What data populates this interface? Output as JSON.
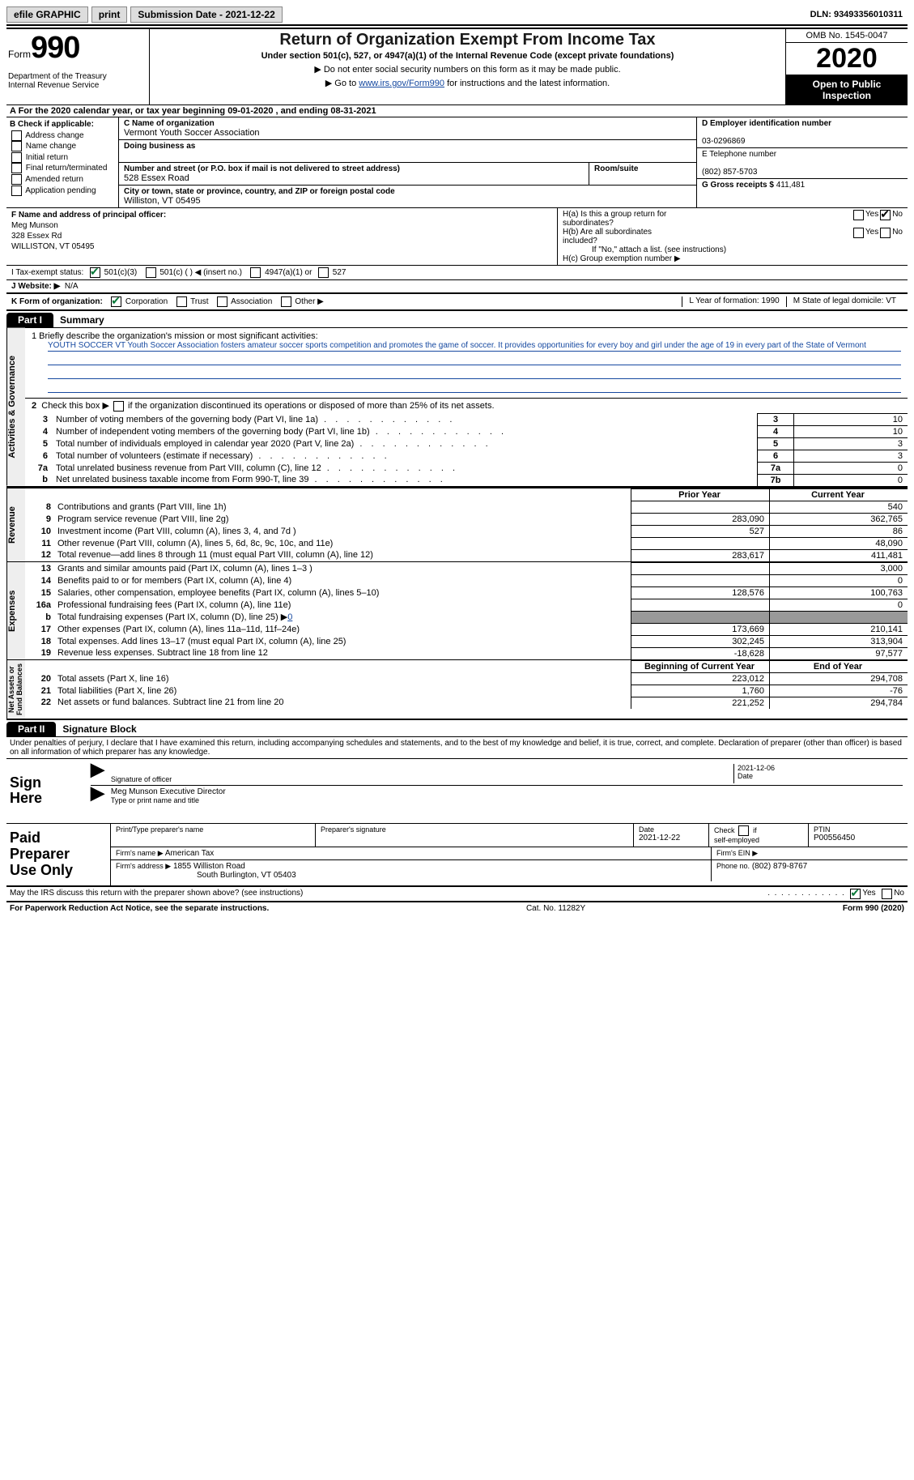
{
  "topbar": {
    "efile_label": "efile GRAPHIC",
    "print_label": "print",
    "submission_label": "Submission Date - 2021-12-22",
    "dln_label": "DLN: 93493356010311"
  },
  "header": {
    "form_word": "Form",
    "form_number": "990",
    "dept": "Department of the Treasury\nInternal Revenue Service",
    "title": "Return of Organization Exempt From Income Tax",
    "subtitle": "Under section 501(c), 527, or 4947(a)(1) of the Internal Revenue Code (except private foundations)",
    "instr1": "▶ Do not enter social security numbers on this form as it may be made public.",
    "instr2_prefix": "▶ Go to ",
    "instr2_link": "www.irs.gov/Form990",
    "instr2_suffix": " for instructions and the latest information.",
    "omb": "OMB No. 1545-0047",
    "year": "2020",
    "open_pub": "Open to Public\nInspection"
  },
  "line_a": "A For the 2020 calendar year, or tax year beginning 09-01-2020    , and ending 08-31-2021",
  "section_b": {
    "label": "B Check if applicable:",
    "items": [
      "Address change",
      "Name change",
      "Initial return",
      "Final return/terminated",
      "Amended return",
      "Application pending"
    ]
  },
  "section_c": {
    "name_label": "C Name of organization",
    "name": "Vermont Youth Soccer Association",
    "dba_label": "Doing business as",
    "dba": "",
    "street_label": "Number and street (or P.O. box if mail is not delivered to street address)",
    "room_label": "Room/suite",
    "street": "528 Essex Road",
    "city_label": "City or town, state or province, country, and ZIP or foreign postal code",
    "city": "Williston, VT  05495"
  },
  "section_d": {
    "ein_label": "D Employer identification number",
    "ein": "03-0296869"
  },
  "section_e": {
    "phone_label": "E Telephone number",
    "phone": "(802) 857-5703"
  },
  "section_g": {
    "gross_label": "G Gross receipts $",
    "gross": "411,481"
  },
  "section_f": {
    "label": "F Name and address of principal officer:",
    "name": "Meg Munson",
    "street": "328 Essex Rd",
    "city": "WILLISTON, VT  05495"
  },
  "section_h": {
    "ha_label": "H(a)  Is this a group return for\n         subordinates?",
    "hb_label": "H(b)  Are all subordinates\n         included?",
    "hb_note": "If \"No,\" attach a list. (see instructions)",
    "hc_label": "H(c)  Group exemption number ▶",
    "yes": "Yes",
    "no": "No"
  },
  "line_i": {
    "label": "I    Tax-exempt status:",
    "opts": [
      "501(c)(3)",
      "501(c) (   ) ◀ (insert no.)",
      "4947(a)(1) or",
      "527"
    ]
  },
  "line_j": {
    "label": "J    Website: ▶",
    "value": "N/A"
  },
  "line_k": {
    "label": "K Form of organization:",
    "opts": [
      "Corporation",
      "Trust",
      "Association",
      "Other ▶"
    ],
    "l_label": "L Year of formation: 1990",
    "m_label": "M State of legal domicile: VT"
  },
  "part1": {
    "tab": "Part I",
    "title": "Summary",
    "sidebar1": "Activities & Governance",
    "sidebar2": "Revenue",
    "sidebar3": "Expenses",
    "sidebar4": "Net Assets or\nFund Balances",
    "q1_label": "1   Briefly describe the organization's mission or most significant activities:",
    "q1_text": "YOUTH SOCCER VT Youth Soccer Association fosters amateur soccer sports competition and promotes the game of soccer. It provides opportunities for every boy and girl under the age of 19 in every part of the State of Vermont",
    "q2_label": "Check this box ▶",
    "q2_suffix": " if the organization discontinued its operations or disposed of more than 25% of its net assets.",
    "rows_gov": [
      {
        "n": "3",
        "desc": "Number of voting members of the governing body (Part VI, line 1a)",
        "box": "3",
        "val": "10"
      },
      {
        "n": "4",
        "desc": "Number of independent voting members of the governing body (Part VI, line 1b)",
        "box": "4",
        "val": "10"
      },
      {
        "n": "5",
        "desc": "Total number of individuals employed in calendar year 2020 (Part V, line 2a)",
        "box": "5",
        "val": "3"
      },
      {
        "n": "6",
        "desc": "Total number of volunteers (estimate if necessary)",
        "box": "6",
        "val": "3"
      },
      {
        "n": "7a",
        "desc": "Total unrelated business revenue from Part VIII, column (C), line 12",
        "box": "7a",
        "val": "0"
      },
      {
        "n": "b",
        "desc": "Net unrelated business taxable income from Form 990-T, line 39",
        "box": "7b",
        "val": "0"
      }
    ],
    "col_prior": "Prior Year",
    "col_current": "Current Year",
    "col_boy": "Beginning of Current Year",
    "col_eoy": "End of Year",
    "rows_rev": [
      {
        "n": "8",
        "desc": "Contributions and grants (Part VIII, line 1h)",
        "c1": "",
        "c2": "540"
      },
      {
        "n": "9",
        "desc": "Program service revenue (Part VIII, line 2g)",
        "c1": "283,090",
        "c2": "362,765"
      },
      {
        "n": "10",
        "desc": "Investment income (Part VIII, column (A), lines 3, 4, and 7d )",
        "c1": "527",
        "c2": "86"
      },
      {
        "n": "11",
        "desc": "Other revenue (Part VIII, column (A), lines 5, 6d, 8c, 9c, 10c, and 11e)",
        "c1": "",
        "c2": "48,090"
      },
      {
        "n": "12",
        "desc": "Total revenue—add lines 8 through 11 (must equal Part VIII, column (A), line 12)",
        "c1": "283,617",
        "c2": "411,481"
      }
    ],
    "rows_exp": [
      {
        "n": "13",
        "desc": "Grants and similar amounts paid (Part IX, column (A), lines 1–3 )",
        "c1": "",
        "c2": "3,000"
      },
      {
        "n": "14",
        "desc": "Benefits paid to or for members (Part IX, column (A), line 4)",
        "c1": "",
        "c2": "0"
      },
      {
        "n": "15",
        "desc": "Salaries, other compensation, employee benefits (Part IX, column (A), lines 5–10)",
        "c1": "128,576",
        "c2": "100,763"
      },
      {
        "n": "16a",
        "desc": "Professional fundraising fees (Part IX, column (A), line 11e)",
        "c1": "",
        "c2": "0"
      },
      {
        "n": "b",
        "desc": "Total fundraising expenses (Part IX, column (D), line 25) ▶0",
        "c1": "SHADE",
        "c2": "SHADE"
      },
      {
        "n": "17",
        "desc": "Other expenses (Part IX, column (A), lines 11a–11d, 11f–24e)",
        "c1": "173,669",
        "c2": "210,141"
      },
      {
        "n": "18",
        "desc": "Total expenses. Add lines 13–17 (must equal Part IX, column (A), line 25)",
        "c1": "302,245",
        "c2": "313,904"
      },
      {
        "n": "19",
        "desc": "Revenue less expenses. Subtract line 18 from line 12",
        "c1": "-18,628",
        "c2": "97,577"
      }
    ],
    "rows_net": [
      {
        "n": "20",
        "desc": "Total assets (Part X, line 16)",
        "c1": "223,012",
        "c2": "294,708"
      },
      {
        "n": "21",
        "desc": "Total liabilities (Part X, line 26)",
        "c1": "1,760",
        "c2": "-76"
      },
      {
        "n": "22",
        "desc": "Net assets or fund balances. Subtract line 21 from line 20",
        "c1": "221,252",
        "c2": "294,784"
      }
    ]
  },
  "part2": {
    "tab": "Part II",
    "title": "Signature Block",
    "perjury": "Under penalties of perjury, I declare that I have examined this return, including accompanying schedules and statements, and to the best of my knowledge and belief, it is true, correct, and complete. Declaration of preparer (other than officer) is based on all information of which preparer has any knowledge.",
    "sign_here": "Sign\nHere",
    "sig_officer": "Signature of officer",
    "sig_date_val": "2021-12-06",
    "date": "Date",
    "officer_name": "Meg Munson Executive Director",
    "type_name": "Type or print name and title",
    "paid_label": "Paid\nPreparer\nUse Only",
    "prep_name_label": "Print/Type preparer's name",
    "prep_sig_label": "Preparer's signature",
    "prep_date_label": "Date",
    "prep_date": "2021-12-22",
    "check_if": "Check",
    "self_emp": "self-employed",
    "if_word": "if",
    "ptin_label": "PTIN",
    "ptin": "P00556450",
    "firm_name_label": "Firm's name     ▶",
    "firm_name": "American Tax",
    "firm_ein_label": "Firm's EIN ▶",
    "firm_addr_label": "Firm's address ▶",
    "firm_addr1": "1855 Williston Road",
    "firm_addr2": "South Burlington, VT  05403",
    "firm_phone_label": "Phone no.",
    "firm_phone": "(802) 879-8767",
    "discuss": "May the IRS discuss this return with the preparer shown above? (see instructions)",
    "yes": "Yes",
    "no": "No"
  },
  "footer": {
    "pra": "For Paperwork Reduction Act Notice, see the separate instructions.",
    "cat": "Cat. No. 11282Y",
    "form": "Form 990 (2020)"
  },
  "colors": {
    "link": "#1649a0",
    "check_green": "#0a7a3a",
    "shade": "#999999"
  }
}
